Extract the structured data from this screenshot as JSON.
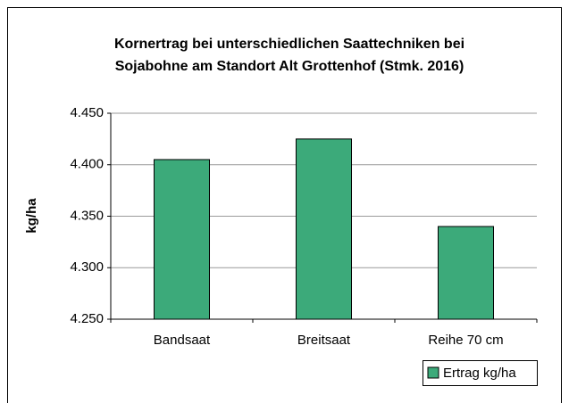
{
  "chart_data": {
    "type": "bar",
    "title": [
      "Kornertrag bei unterschiedlichen Saattechniken bei",
      "Sojabohne am Standort Alt Grottenhof (Stmk. 2016)"
    ],
    "y_label": "kg/ha",
    "categories": [
      "Bandsaat",
      "Breitsaat",
      "Reihe 70 cm"
    ],
    "series": [
      {
        "name": "Ertrag kg/ha",
        "color": "#3caa7a",
        "values": [
          4405,
          4425,
          4340
        ]
      }
    ],
    "ylim": [
      4250,
      4450
    ],
    "yticks": [
      {
        "value": 4250,
        "label": "4.250"
      },
      {
        "value": 4300,
        "label": "4.300"
      },
      {
        "value": 4350,
        "label": "4.350"
      },
      {
        "value": 4400,
        "label": "4.400"
      },
      {
        "value": 4450,
        "label": "4.450"
      }
    ],
    "grid": true,
    "legend": "bottom-right"
  }
}
